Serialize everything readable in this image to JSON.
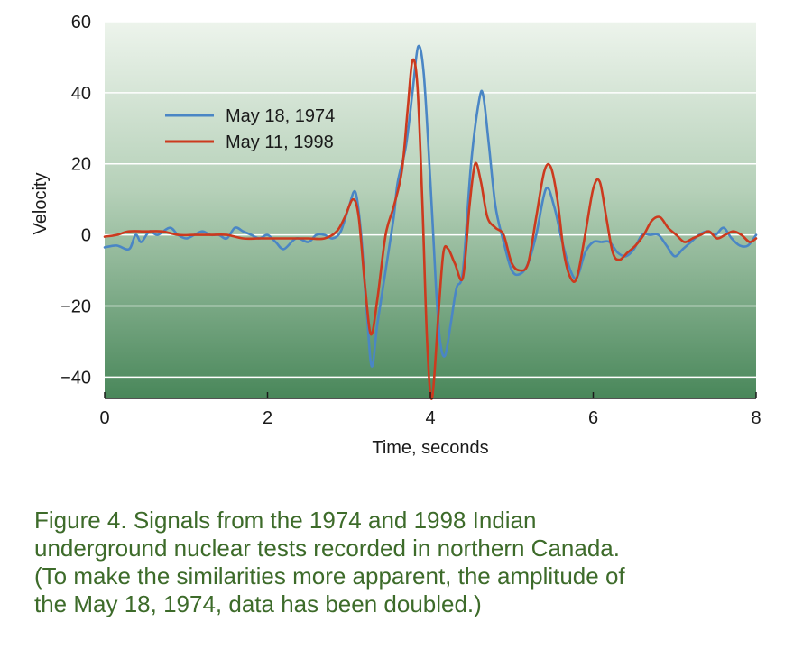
{
  "chart_data": {
    "type": "line",
    "xlabel": "Time, seconds",
    "ylabel": "Velocity",
    "xlim": [
      0,
      8
    ],
    "ylim": [
      -46,
      60
    ],
    "xticks": [
      0,
      2,
      4,
      6,
      8
    ],
    "yticks": [
      60,
      40,
      20,
      0,
      -20,
      -40
    ],
    "grid": "horizontal",
    "legend": "upper-left",
    "series": [
      {
        "name": "May 18, 1974",
        "color": "#4a86c5",
        "x": [
          0,
          0.15,
          0.3,
          0.38,
          0.45,
          0.55,
          0.65,
          0.8,
          0.9,
          1.0,
          1.1,
          1.2,
          1.3,
          1.4,
          1.5,
          1.6,
          1.7,
          1.8,
          1.9,
          2.0,
          2.1,
          2.2,
          2.35,
          2.5,
          2.6,
          2.7,
          2.8,
          2.9,
          3.0,
          3.08,
          3.15,
          3.22,
          3.28,
          3.35,
          3.45,
          3.55,
          3.6,
          3.7,
          3.78,
          3.85,
          3.92,
          4.0,
          4.07,
          4.12,
          4.18,
          4.25,
          4.32,
          4.4,
          4.5,
          4.6,
          4.65,
          4.72,
          4.8,
          4.9,
          5.0,
          5.1,
          5.2,
          5.3,
          5.42,
          5.52,
          5.62,
          5.72,
          5.8,
          5.9,
          6.0,
          6.1,
          6.2,
          6.3,
          6.4,
          6.5,
          6.6,
          6.7,
          6.8,
          6.9,
          7.0,
          7.1,
          7.2,
          7.3,
          7.4,
          7.5,
          7.6,
          7.7,
          7.8,
          7.9,
          8.0
        ],
        "y": [
          -3.5,
          -3,
          -4,
          0,
          -2,
          1,
          0,
          2,
          0,
          -1,
          0,
          1,
          0,
          0,
          -1,
          2,
          1,
          0,
          -1,
          0,
          -2,
          -4,
          -1,
          -2,
          0,
          0,
          -1,
          1,
          8,
          12,
          0,
          -22,
          -37,
          -25,
          -10,
          5,
          15,
          25,
          40,
          53,
          45,
          15,
          -15,
          -30,
          -34,
          -25,
          -15,
          -10,
          20,
          38,
          39,
          25,
          8,
          -2,
          -10,
          -11,
          -8,
          0,
          13,
          8,
          -2,
          -10,
          -12,
          -5,
          -2,
          -2,
          -2,
          -5,
          -6,
          -4,
          0,
          0,
          0,
          -3,
          -6,
          -4,
          -2,
          0,
          1,
          0,
          2,
          -1,
          -3,
          -3,
          0
        ]
      },
      {
        "name": "May 11, 1998",
        "color": "#cc3a1e",
        "x": [
          0,
          0.15,
          0.3,
          0.5,
          0.7,
          0.9,
          1.1,
          1.3,
          1.5,
          1.7,
          1.9,
          2.1,
          2.3,
          2.5,
          2.7,
          2.85,
          2.95,
          3.05,
          3.12,
          3.2,
          3.27,
          3.35,
          3.45,
          3.55,
          3.65,
          3.72,
          3.78,
          3.84,
          3.9,
          3.96,
          4.02,
          4.1,
          4.16,
          4.22,
          4.3,
          4.4,
          4.48,
          4.55,
          4.62,
          4.7,
          4.8,
          4.9,
          5.0,
          5.1,
          5.2,
          5.3,
          5.4,
          5.48,
          5.56,
          5.64,
          5.72,
          5.8,
          5.9,
          6.0,
          6.08,
          6.16,
          6.24,
          6.32,
          6.42,
          6.52,
          6.62,
          6.72,
          6.82,
          6.92,
          7.02,
          7.12,
          7.22,
          7.32,
          7.42,
          7.52,
          7.62,
          7.72,
          7.82,
          7.92,
          8.0
        ],
        "y": [
          -0.5,
          0,
          1,
          1,
          1,
          0,
          0,
          0,
          0,
          -1,
          -1,
          -1,
          -1,
          -1,
          -1,
          1,
          5,
          10,
          5,
          -15,
          -28,
          -18,
          0,
          8,
          18,
          35,
          49,
          42,
          10,
          -30,
          -46,
          -22,
          -5,
          -4,
          -8,
          -12,
          8,
          20,
          15,
          5,
          2,
          0,
          -8,
          -10,
          -8,
          5,
          18,
          19,
          10,
          -5,
          -12,
          -12,
          0,
          13,
          15,
          5,
          -5,
          -7,
          -5,
          -3,
          0,
          4,
          5,
          2,
          0,
          -2,
          -1,
          0,
          1,
          -1,
          0,
          1,
          0,
          -2,
          -1
        ]
      }
    ]
  },
  "caption": {
    "lines": [
      "Figure 4. Signals from the 1974 and 1998 Indian",
      "underground nuclear tests recorded in northern Canada.",
      "(To make the similarities more apparent, the amplitude of",
      "the May 18, 1974, data has been doubled.)"
    ]
  }
}
